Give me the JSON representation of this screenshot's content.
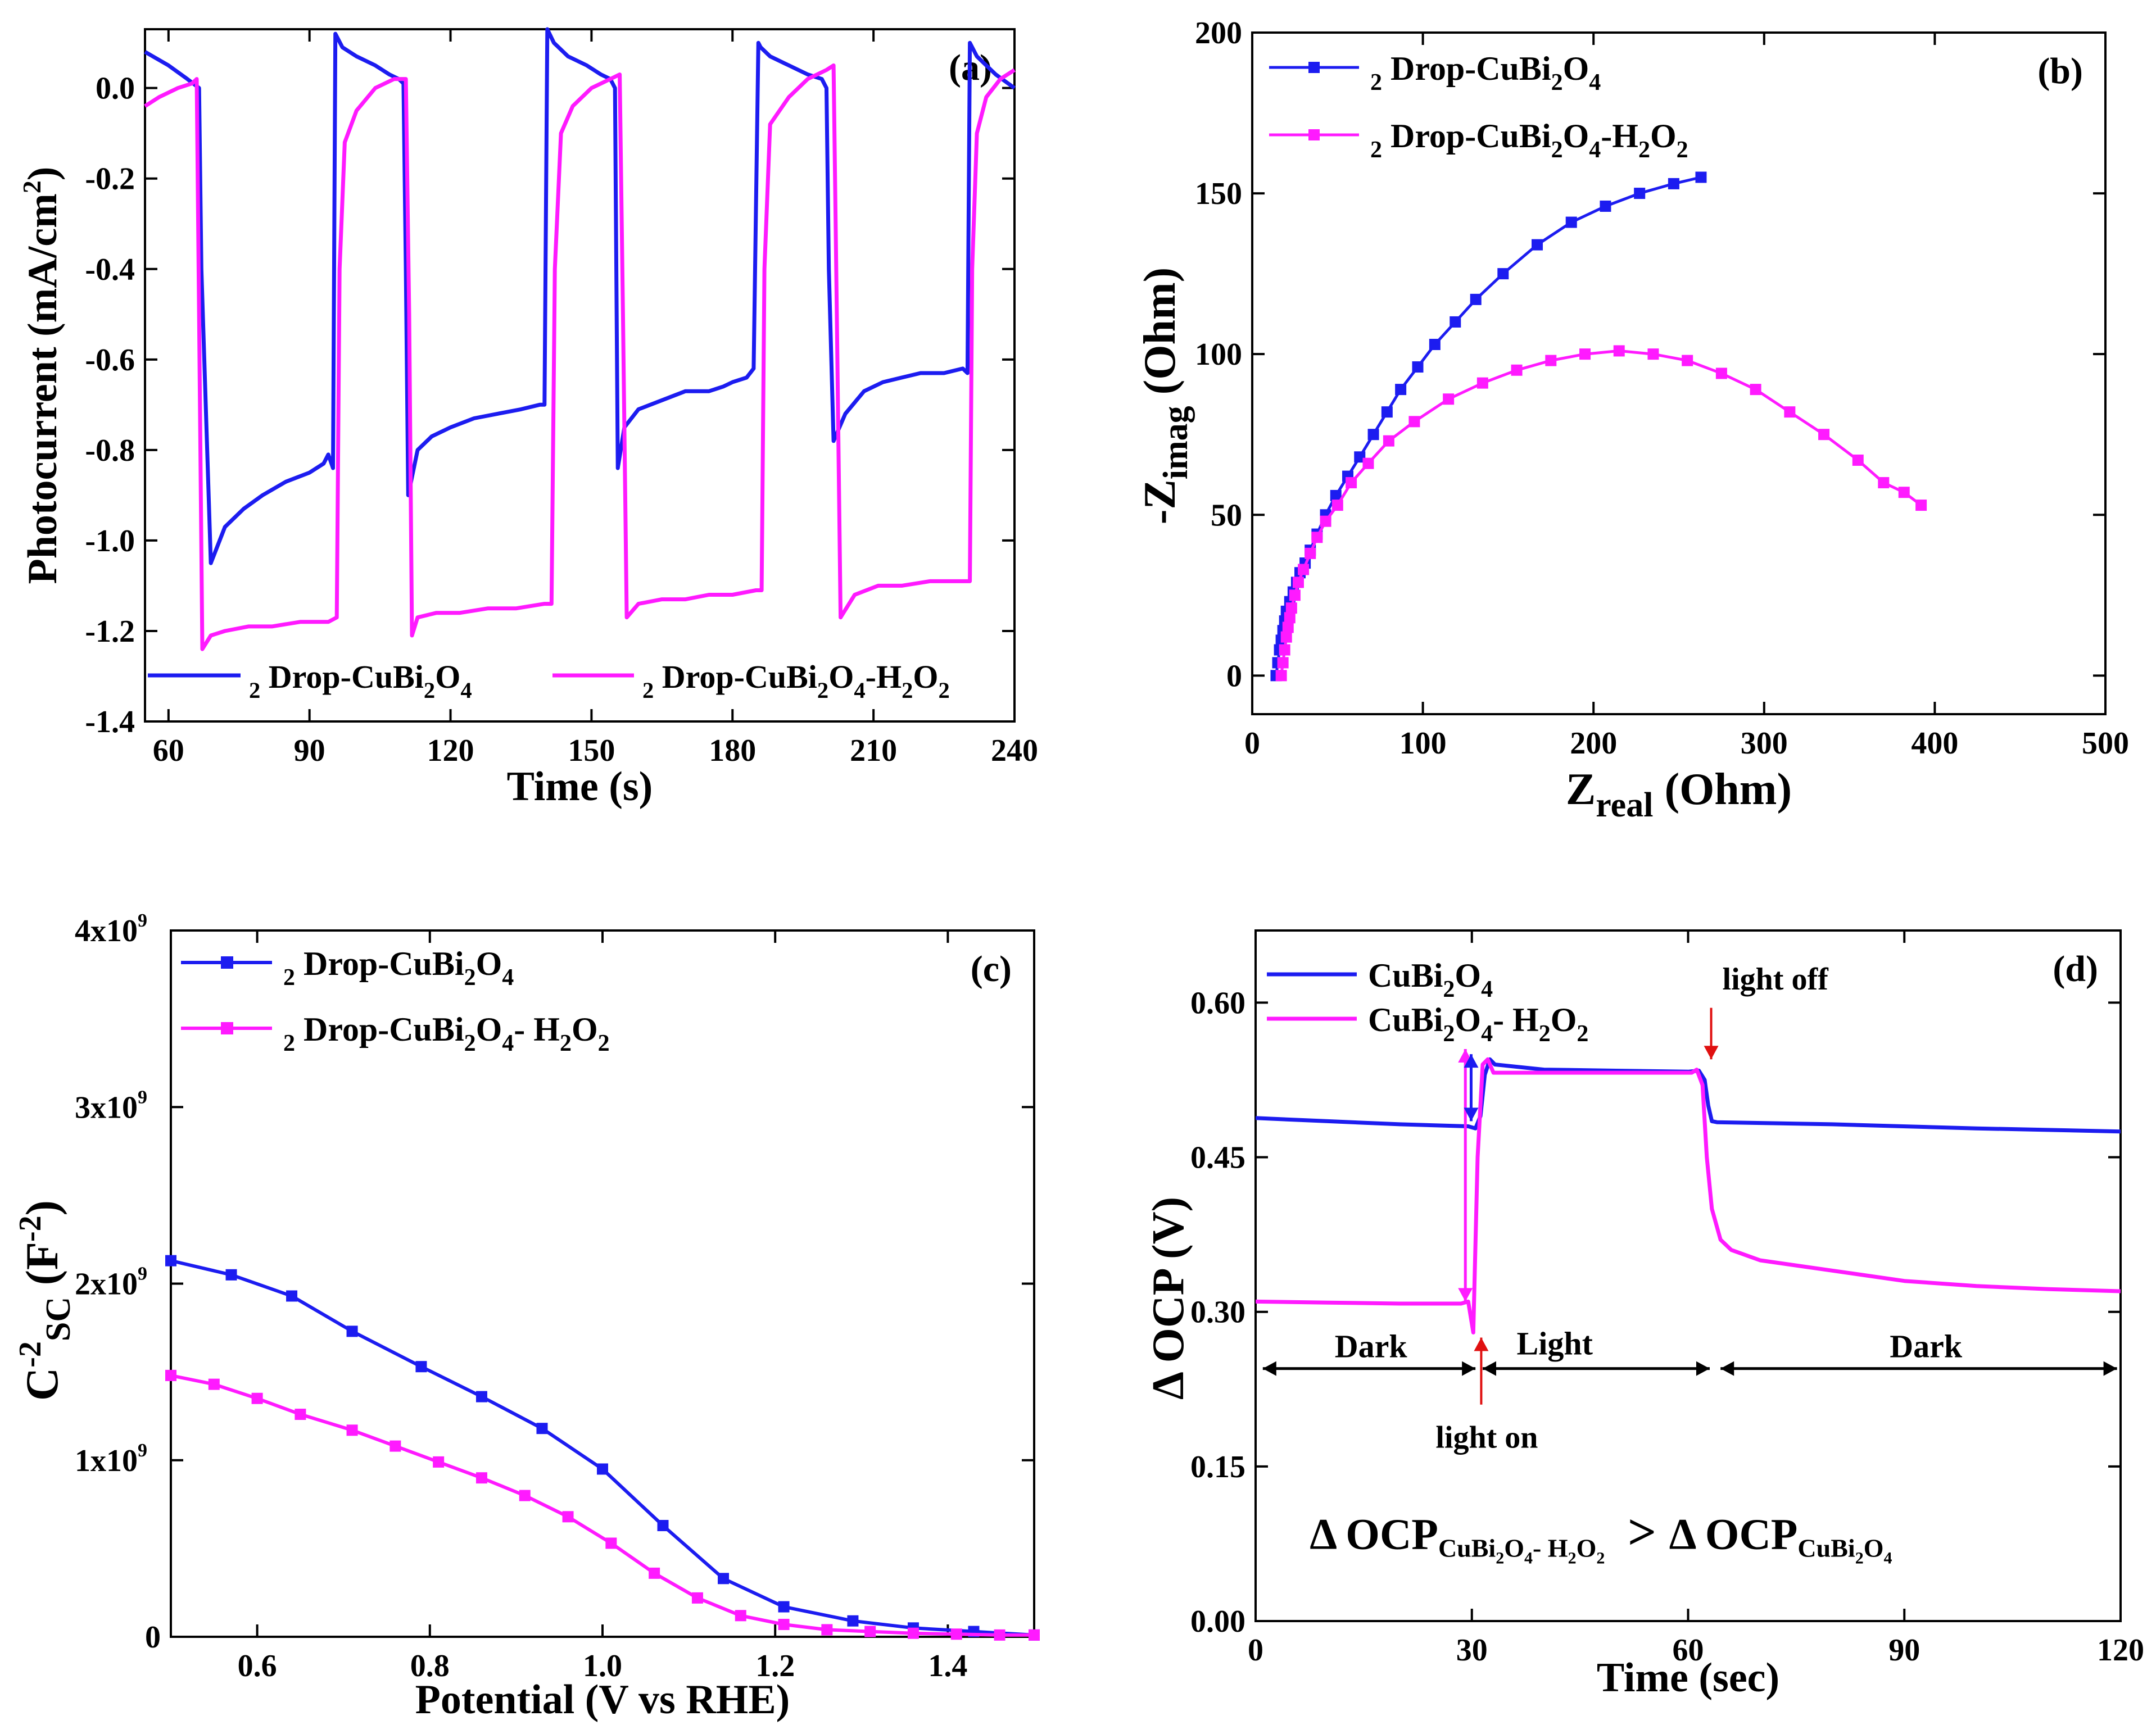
{
  "colors": {
    "blue": "#1c1cf0",
    "magenta": "#ff1aff",
    "arrow_red": "#e01010",
    "axis": "#000000"
  },
  "chart_data": [
    {
      "panel_label": "(a)",
      "type": "line",
      "xlabel": "Time (s)",
      "ylabel": "Photocurrent (mA/cm2)",
      "xlim": [
        55,
        240
      ],
      "ylim": [
        -1.4,
        0.13
      ],
      "x_ticks": [
        60,
        90,
        120,
        150,
        180,
        210,
        240
      ],
      "y_ticks": [
        0.0,
        -0.2,
        -0.4,
        -0.6,
        -0.8,
        -1.0,
        -1.2,
        -1.4
      ],
      "x_tick_labels": [
        "60",
        "90",
        "120",
        "150",
        "180",
        "210",
        "240"
      ],
      "y_tick_labels": [
        "0.0",
        "-0.2",
        "-0.4",
        "-0.6",
        "-0.8",
        "-1.0",
        "-1.2",
        "-1.4"
      ],
      "legend_position": "bottom",
      "series": [
        {
          "name": "2 Drop-CuBi2O4",
          "color": "blue",
          "x": [
            55,
            60,
            64,
            66.5,
            67,
            69,
            72,
            76,
            80,
            85,
            90,
            93,
            94,
            95,
            95.5,
            97,
            100,
            104,
            107,
            109,
            110,
            110.5,
            111,
            113,
            116,
            120,
            125,
            130,
            135,
            139,
            140,
            140.6,
            142,
            145,
            149,
            152,
            154,
            155,
            155.6,
            157,
            160,
            165,
            170,
            175,
            178,
            180,
            183,
            184.5,
            185.5,
            186,
            188,
            192,
            196,
            199,
            200,
            200.5,
            201.5,
            204,
            208,
            212,
            216,
            220,
            225,
            229,
            230,
            230.5,
            232,
            236,
            240
          ],
          "y": [
            0.08,
            0.05,
            0.02,
            0.0,
            -0.4,
            -1.05,
            -0.97,
            -0.93,
            -0.9,
            -0.87,
            -0.85,
            -0.83,
            -0.81,
            -0.84,
            0.12,
            0.09,
            0.07,
            0.05,
            0.03,
            0.02,
            0.01,
            -0.4,
            -0.9,
            -0.8,
            -0.77,
            -0.75,
            -0.73,
            -0.72,
            -0.71,
            -0.7,
            -0.7,
            0.13,
            0.1,
            0.07,
            0.05,
            0.03,
            0.02,
            0.0,
            -0.84,
            -0.75,
            -0.71,
            -0.69,
            -0.67,
            -0.67,
            -0.66,
            -0.65,
            -0.64,
            -0.62,
            0.1,
            0.09,
            0.07,
            0.05,
            0.03,
            0.02,
            0.0,
            -0.4,
            -0.78,
            -0.72,
            -0.67,
            -0.65,
            -0.64,
            -0.63,
            -0.63,
            -0.62,
            -0.63,
            0.1,
            0.07,
            0.03,
            0.0
          ]
        },
        {
          "name": "2 Drop-CuBi2O4-H2O2",
          "color": "magenta",
          "x": [
            55,
            58,
            62,
            65,
            66,
            66.5,
            67.2,
            69,
            72,
            77,
            82,
            88,
            94,
            95.8,
            96.4,
            97.5,
            100,
            104,
            108,
            110.5,
            111.2,
            111.8,
            113,
            117,
            122,
            128,
            134,
            140,
            141.5,
            142.2,
            143.5,
            146,
            150,
            154,
            156,
            156.7,
            157.5,
            160,
            165,
            170,
            175,
            180,
            185,
            186.2,
            186.8,
            188,
            192,
            196,
            200,
            201.5,
            202.2,
            203,
            206,
            211,
            216,
            222,
            228,
            230.5,
            231,
            232,
            234,
            237,
            240
          ],
          "y": [
            -0.04,
            -0.02,
            0.0,
            0.01,
            0.02,
            -0.5,
            -1.24,
            -1.21,
            -1.2,
            -1.19,
            -1.19,
            -1.18,
            -1.18,
            -1.17,
            -0.4,
            -0.12,
            -0.05,
            0.0,
            0.02,
            0.02,
            -0.5,
            -1.21,
            -1.17,
            -1.16,
            -1.16,
            -1.15,
            -1.15,
            -1.14,
            -1.14,
            -0.4,
            -0.1,
            -0.04,
            0.0,
            0.02,
            0.03,
            -0.5,
            -1.17,
            -1.14,
            -1.13,
            -1.13,
            -1.12,
            -1.12,
            -1.11,
            -1.11,
            -0.4,
            -0.08,
            -0.02,
            0.02,
            0.04,
            0.05,
            -0.5,
            -1.17,
            -1.12,
            -1.1,
            -1.1,
            -1.09,
            -1.09,
            -1.09,
            -0.4,
            -0.1,
            -0.02,
            0.02,
            0.04
          ]
        }
      ]
    },
    {
      "panel_label": "(b)",
      "type": "scatter",
      "xlabel": "Zreal (Ohm)",
      "ylabel": "-Zimag (Ohm)",
      "xlim": [
        0,
        500
      ],
      "ylim": [
        -12,
        200
      ],
      "x_ticks": [
        0,
        100,
        200,
        300,
        400,
        500
      ],
      "y_ticks": [
        0,
        50,
        100,
        150,
        200
      ],
      "x_tick_labels": [
        "0",
        "100",
        "200",
        "300",
        "400",
        "500"
      ],
      "y_tick_labels": [
        "0",
        "50",
        "100",
        "150",
        "200"
      ],
      "legend_position": "top-left",
      "series": [
        {
          "name": "2 Drop-CuBi2O4",
          "color": "blue",
          "x": [
            14,
            15,
            16,
            17,
            18,
            19,
            20,
            22,
            24,
            26,
            28,
            31,
            34,
            38,
            43,
            49,
            56,
            63,
            71,
            79,
            87,
            97,
            107,
            119,
            131,
            147,
            167,
            187,
            207,
            227,
            247,
            263
          ],
          "y": [
            0,
            4,
            8,
            11,
            14,
            17,
            20,
            23,
            26,
            29,
            32,
            35,
            39,
            44,
            50,
            56,
            62,
            68,
            75,
            82,
            89,
            96,
            103,
            110,
            117,
            125,
            134,
            141,
            146,
            150,
            153,
            155
          ]
        },
        {
          "name": "2 Drop-CuBi2O4-H2O2",
          "color": "magenta",
          "x": [
            17,
            18,
            19,
            20,
            21,
            22,
            23,
            25,
            27,
            30,
            34,
            38,
            43,
            50,
            58,
            68,
            80,
            95,
            115,
            135,
            155,
            175,
            195,
            215,
            235,
            255,
            275,
            295,
            315,
            335,
            355,
            370,
            382,
            392
          ],
          "y": [
            0,
            4,
            8,
            12,
            15,
            18,
            21,
            25,
            29,
            33,
            38,
            43,
            48,
            53,
            60,
            66,
            73,
            79,
            86,
            91,
            95,
            98,
            100,
            101,
            100,
            98,
            94,
            89,
            82,
            75,
            67,
            60,
            57,
            53
          ]
        }
      ]
    },
    {
      "panel_label": "(c)",
      "type": "line",
      "xlabel": "Potential (V vs RHE)",
      "ylabel": "C-2SC (F-2)",
      "xlim": [
        0.5,
        1.5
      ],
      "ylim": [
        0,
        4000000000
      ],
      "x_ticks": [
        0.6,
        0.8,
        1.0,
        1.2,
        1.4
      ],
      "y_ticks": [
        0,
        1000000000,
        2000000000,
        3000000000,
        4000000000
      ],
      "x_tick_labels": [
        "0.6",
        "0.8",
        "1.0",
        "1.2",
        "1.4"
      ],
      "y_tick_labels": [
        "0",
        "1x10",
        "2x10",
        "3x10",
        "4x10"
      ],
      "y_tick_exponents": [
        "",
        "9",
        "9",
        "9",
        "9"
      ],
      "legend_position": "top-left",
      "series": [
        {
          "name": "2 Drop-CuBi2O4",
          "color": "blue",
          "x": [
            0.5,
            0.57,
            0.64,
            0.71,
            0.79,
            0.86,
            0.93,
            1.0,
            1.07,
            1.14,
            1.21,
            1.29,
            1.36,
            1.43,
            1.5
          ],
          "y": [
            2130000000,
            2050000000,
            1930000000,
            1730000000,
            1530000000,
            1360000000,
            1180000000,
            950000000,
            630000000,
            330000000,
            170000000,
            90000000,
            50000000,
            30000000,
            10000000
          ]
        },
        {
          "name": "2 Drop-CuBi2O4- H2O2",
          "color": "magenta",
          "x": [
            0.5,
            0.55,
            0.6,
            0.65,
            0.71,
            0.76,
            0.81,
            0.86,
            0.91,
            0.96,
            1.01,
            1.06,
            1.11,
            1.16,
            1.21,
            1.26,
            1.31,
            1.36,
            1.41,
            1.46,
            1.5
          ],
          "y": [
            1480000000,
            1430000000,
            1350000000,
            1260000000,
            1170000000,
            1080000000,
            990000000,
            900000000,
            800000000,
            680000000,
            530000000,
            360000000,
            220000000,
            120000000,
            70000000,
            40000000,
            30000000,
            20000000,
            15000000,
            10000000,
            10000000
          ]
        }
      ]
    },
    {
      "panel_label": "(d)",
      "type": "line",
      "xlabel": "Time (sec)",
      "ylabel": "Δ OCP (V)",
      "xlim": [
        0,
        120
      ],
      "ylim": [
        0,
        0.67
      ],
      "x_ticks": [
        0,
        30,
        60,
        90,
        120
      ],
      "y_ticks": [
        0.0,
        0.15,
        0.3,
        0.45,
        0.6
      ],
      "x_tick_labels": [
        "0",
        "30",
        "60",
        "90",
        "120"
      ],
      "y_tick_labels": [
        "0.00",
        "0.15",
        "0.30",
        "0.45",
        "0.60"
      ],
      "legend_position": "top-left",
      "series": [
        {
          "name": "CuBi2O4",
          "color": "blue",
          "x": [
            0,
            10,
            20,
            29.5,
            30.5,
            31.2,
            31.8,
            32.5,
            33.2,
            40,
            50,
            60,
            61.5,
            62.3,
            62.8,
            63.3,
            64,
            80,
            100,
            120
          ],
          "y": [
            0.488,
            0.485,
            0.482,
            0.48,
            0.478,
            0.49,
            0.53,
            0.545,
            0.54,
            0.535,
            0.534,
            0.533,
            0.534,
            0.525,
            0.5,
            0.485,
            0.484,
            0.482,
            0.478,
            0.475
          ]
        },
        {
          "name": "CuBi2O4- H2O2",
          "color": "magenta",
          "x": [
            0,
            10,
            20,
            28.5,
            29.5,
            30.2,
            30.8,
            31.5,
            32.2,
            33,
            40,
            50,
            58,
            60.5,
            61.2,
            62,
            62.6,
            63.3,
            64.5,
            66,
            70,
            80,
            90,
            100,
            110,
            120
          ],
          "y": [
            0.31,
            0.309,
            0.308,
            0.308,
            0.31,
            0.28,
            0.45,
            0.54,
            0.545,
            0.532,
            0.532,
            0.532,
            0.532,
            0.532,
            0.535,
            0.52,
            0.45,
            0.4,
            0.37,
            0.36,
            0.35,
            0.34,
            0.33,
            0.325,
            0.322,
            0.32
          ]
        }
      ],
      "annotations": {
        "light_off": "light off",
        "light_on": "light on",
        "dark_left": "Dark",
        "light": "Light",
        "dark_right": "Dark",
        "relation_a": "Δ OCP",
        "relation_sub_a": "CuBi2O4- H2O2",
        "relation_gt": ">",
        "relation_b": "Δ OCP",
        "relation_sub_b": "CuBi2O4"
      }
    }
  ]
}
